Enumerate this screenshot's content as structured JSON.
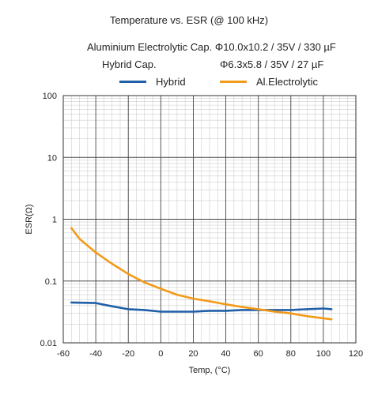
{
  "chart_data": {
    "type": "line",
    "title": "Temperature vs. ESR (@ 100 kHz)",
    "subtitle_lines": [
      "Aluminium Electrolytic Cap. Φ10.0x10.2 / 35V / 330 µF",
      "Hybrid Cap."
    ],
    "hybrid_spec": "Φ6.3x5.8 / 35V / 27 µF",
    "xlabel": "Temp, (°C)",
    "ylabel": "ESR(Ω)",
    "xlim": [
      -60,
      120
    ],
    "ylim": [
      0.01,
      100
    ],
    "yscale": "log",
    "grid": true,
    "legend_position": "top",
    "x_ticks": [
      "-60",
      "-40",
      "-20",
      "0",
      "20",
      "40",
      "60",
      "80",
      "100",
      "120"
    ],
    "y_ticks": [
      "0.01",
      "0.1",
      "1",
      "10",
      "100"
    ],
    "series": [
      {
        "name": "Hybrid",
        "color": "#1f5fa8",
        "x": [
          -55,
          -40,
          -30,
          -20,
          -10,
          0,
          10,
          20,
          30,
          40,
          50,
          60,
          70,
          80,
          90,
          100,
          105
        ],
        "y": [
          0.045,
          0.044,
          0.039,
          0.035,
          0.034,
          0.032,
          0.032,
          0.032,
          0.033,
          0.033,
          0.034,
          0.034,
          0.034,
          0.034,
          0.035,
          0.036,
          0.035
        ]
      },
      {
        "name": "Al.Electrolytic",
        "color": "#f29a1a",
        "x": [
          -55,
          -50,
          -40,
          -30,
          -20,
          -10,
          0,
          10,
          20,
          30,
          40,
          50,
          60,
          70,
          80,
          90,
          100,
          105
        ],
        "y": [
          0.72,
          0.48,
          0.29,
          0.19,
          0.13,
          0.095,
          0.075,
          0.06,
          0.052,
          0.047,
          0.042,
          0.038,
          0.035,
          0.032,
          0.03,
          0.027,
          0.025,
          0.024
        ]
      }
    ]
  }
}
